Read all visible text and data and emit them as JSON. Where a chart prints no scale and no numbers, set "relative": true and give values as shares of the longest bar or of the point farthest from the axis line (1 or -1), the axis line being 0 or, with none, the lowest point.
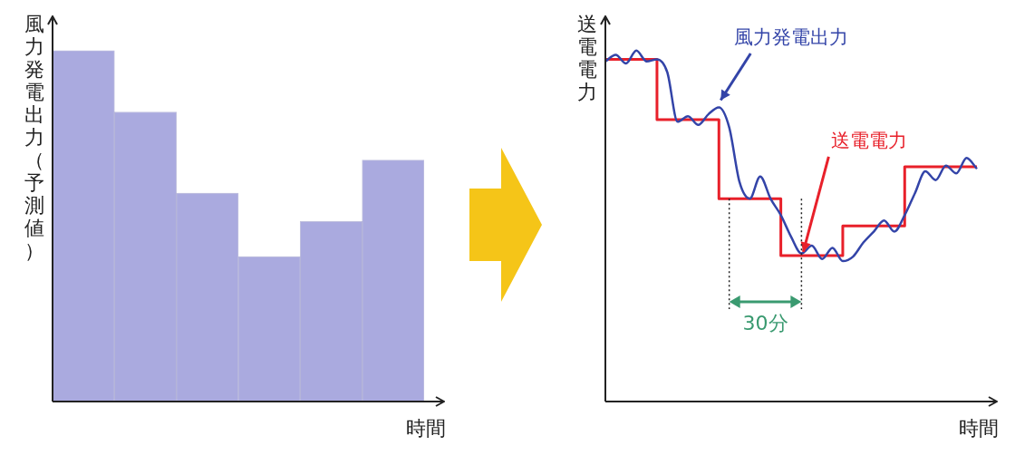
{
  "chart_data": [
    {
      "type": "bar",
      "relative": true,
      "ylabel": "風力発電出力（予測値）",
      "xlabel": "時間",
      "categories": [
        null,
        null,
        null,
        null,
        null,
        null
      ],
      "values": [
        1,
        0.825,
        0.594,
        0.413,
        0.513,
        0.688
      ],
      "color": "#aaaadf",
      "grid": false,
      "legend": false
    },
    {
      "type": "line",
      "relative": true,
      "ylabel": "送電電力",
      "xlabel": "時間",
      "annotations": [
        "30分"
      ],
      "grid": false,
      "legend": false,
      "categories": [
        null,
        null,
        null,
        null,
        null,
        null,
        null,
        null,
        null,
        null,
        null,
        null,
        null,
        null,
        null,
        null,
        null,
        null,
        null,
        null,
        null,
        null,
        null,
        null,
        null,
        null,
        null,
        null,
        null,
        null,
        null,
        null,
        null,
        null,
        null,
        null,
        null
      ],
      "series": [
        {
          "name": "風力発電出力",
          "type": "line",
          "color": "#3344a8",
          "values": [
            0.969,
            0.988,
            0.963,
            1,
            0.969,
            0.975,
            0.938,
            0.797,
            0.813,
            0.788,
            0.819,
            0.838,
            0.781,
            0.625,
            0.578,
            0.641,
            0.578,
            0.531,
            0.469,
            0.422,
            0.444,
            0.406,
            0.438,
            0.4,
            0.413,
            0.453,
            0.484,
            0.516,
            0.484,
            0.531,
            0.594,
            0.656,
            0.631,
            0.672,
            0.65,
            0.694,
            0.663
          ]
        },
        {
          "name": "送電電力",
          "type": "step",
          "color": "#e8202a",
          "values": [
            0.975,
            0.975,
            0.975,
            0.975,
            0.975,
            0.975,
            0.803,
            0.803,
            0.803,
            0.803,
            0.803,
            0.803,
            0.578,
            0.578,
            0.578,
            0.578,
            0.578,
            0.578,
            0.416,
            0.416,
            0.416,
            0.416,
            0.416,
            0.416,
            0.5,
            0.5,
            0.5,
            0.5,
            0.5,
            0.5,
            0.669,
            0.669,
            0.669,
            0.669,
            0.669,
            0.669,
            0.669
          ]
        }
      ]
    }
  ]
}
